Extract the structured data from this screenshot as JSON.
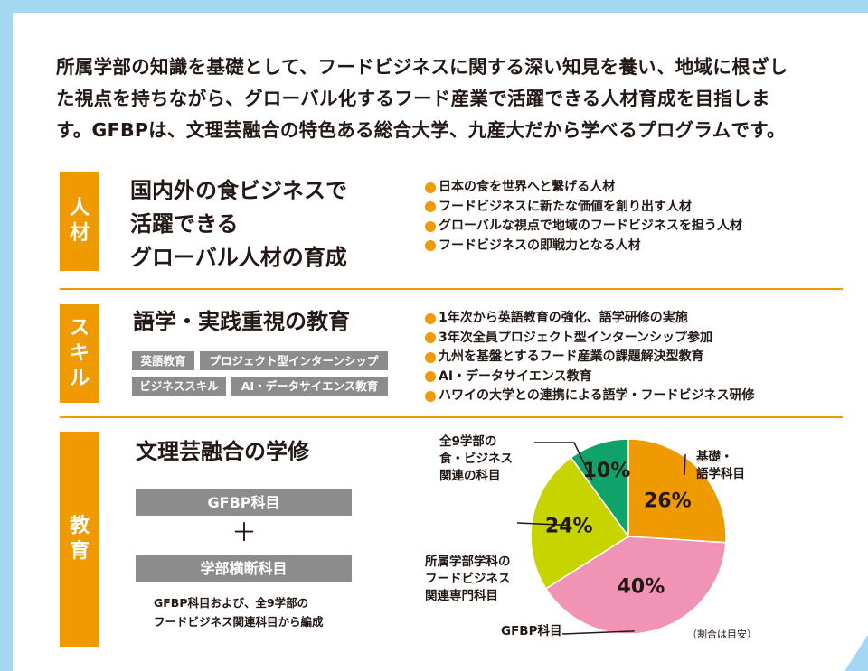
{
  "intro": {
    "lines": [
      "所属学部の知識を基礎として、フードビジネスに関する深い知見を養い、地域に根ざし",
      "た視点を持ちながら、グローバル化するフード産業で活躍できる人材育成を目指しま",
      "す。GFBPは、文理芸融合の特色ある総合大学、九産大だから学べるプログラムです。"
    ]
  },
  "jinzai": {
    "tab": [
      "人",
      "材"
    ],
    "heading": [
      "国内外の食ビジネスで",
      "活躍できる",
      "グローバル人材の育成"
    ],
    "bullets": [
      "日本の食を世界へと繋げる人材",
      "フードビジネスに新たな価値を創り出す人材",
      "グローバルな視点で地域のフードビジネスを担う人材",
      "フードビジネスの即戦力となる人材"
    ]
  },
  "skill": {
    "tab": [
      "ス",
      "キ",
      "ル"
    ],
    "heading": "語学・実践重視の教育",
    "tags": [
      "英語教育",
      "プロジェクト型インターンシップ",
      "ビジネススキル",
      "AI・データサイエンス教育"
    ],
    "bullets": [
      "1年次から英語教育の強化、語学研修の実施",
      "3年次全員プロジェクト型インターンシップ参加",
      "九州を基盤とするフード産業の課題解決型教育",
      "AI・データサイエンス教育",
      "ハワイの大学との連携による語学・フードビジネス研修"
    ]
  },
  "kyoiku": {
    "tab": [
      "教",
      "育"
    ],
    "heading": "文理芸融合の学修",
    "bar1": "GFBP科目",
    "plus": "＋",
    "bar2": "学部横断科目",
    "note": [
      "GFBP科目および、全9学部の",
      "フードビジネス関連科目から編成"
    ],
    "ratio_note": "（割合は目安）"
  },
  "chart_data": {
    "type": "pie",
    "start_angle_deg": 0,
    "slices": [
      {
        "label": [
          "基礎・",
          "語学科目"
        ],
        "value": 26,
        "value_label": "26%",
        "color": "#ee9a00"
      },
      {
        "label": [
          "GFBP科目"
        ],
        "value": 40,
        "value_label": "40%",
        "color": "#f093b5"
      },
      {
        "label": [
          "所属学部学科の",
          "フードビジネス",
          "関連専門科目"
        ],
        "value": 24,
        "value_label": "24%",
        "color": "#c8d400"
      },
      {
        "label": [
          "全9学部の",
          "食・ビジネス",
          "関連の科目"
        ],
        "value": 10,
        "value_label": "10%",
        "color": "#0fa36b"
      }
    ]
  },
  "colors": {
    "accent": "#ee9a00",
    "frame": "#a3d7f2",
    "tag_grey": "#8c8c8c"
  }
}
